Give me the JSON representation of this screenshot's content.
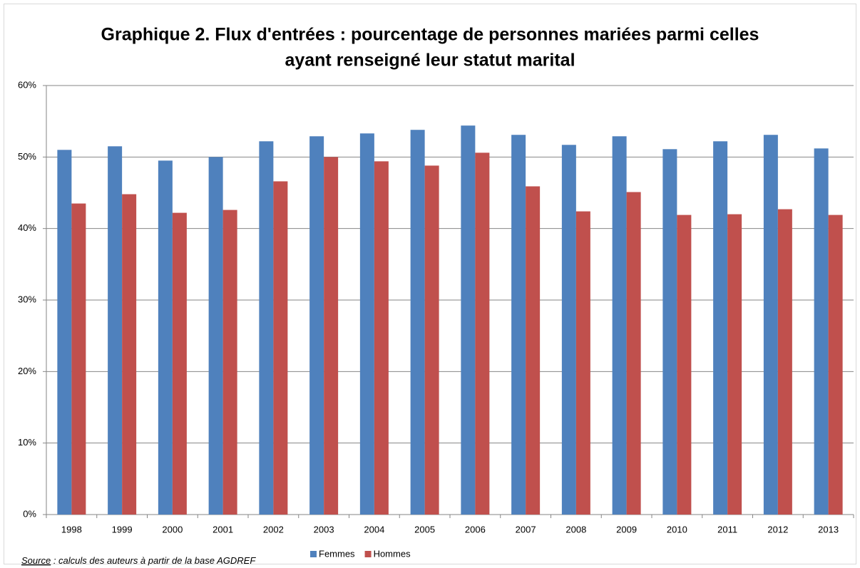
{
  "chart_data": {
    "type": "bar",
    "title": [
      "Graphique 2. Flux d'entrées : pourcentage de personnes mariées parmi celles",
      "ayant renseigné leur statut marital"
    ],
    "categories": [
      "1998",
      "1999",
      "2000",
      "2001",
      "2002",
      "2003",
      "2004",
      "2005",
      "2006",
      "2007",
      "2008",
      "2009",
      "2010",
      "2011",
      "2012",
      "2013"
    ],
    "series": [
      {
        "name": "Femmes",
        "color": "#4f81bd",
        "values": [
          51.0,
          51.5,
          49.5,
          50.0,
          52.2,
          52.9,
          53.3,
          53.8,
          54.4,
          53.1,
          51.7,
          52.9,
          51.1,
          52.2,
          53.1,
          51.2
        ]
      },
      {
        "name": "Hommes",
        "color": "#c0504d",
        "values": [
          43.5,
          44.8,
          42.2,
          42.6,
          46.6,
          50.0,
          49.4,
          48.8,
          50.6,
          45.9,
          42.4,
          45.1,
          41.9,
          42.0,
          42.7,
          41.9
        ]
      }
    ],
    "ylim": [
      0,
      60
    ],
    "yticks": [
      {
        "value": 0,
        "label": "0%"
      },
      {
        "value": 10,
        "label": "10%"
      },
      {
        "value": 20,
        "label": "20%"
      },
      {
        "value": 30,
        "label": "30%"
      },
      {
        "value": 40,
        "label": "40%"
      },
      {
        "value": 50,
        "label": "50%"
      },
      {
        "value": 60,
        "label": "60%"
      }
    ],
    "grid": true,
    "legend": "bottom",
    "source": {
      "label": "Source",
      "text": " : calculs des auteurs à partir de la base AGDREF"
    }
  }
}
